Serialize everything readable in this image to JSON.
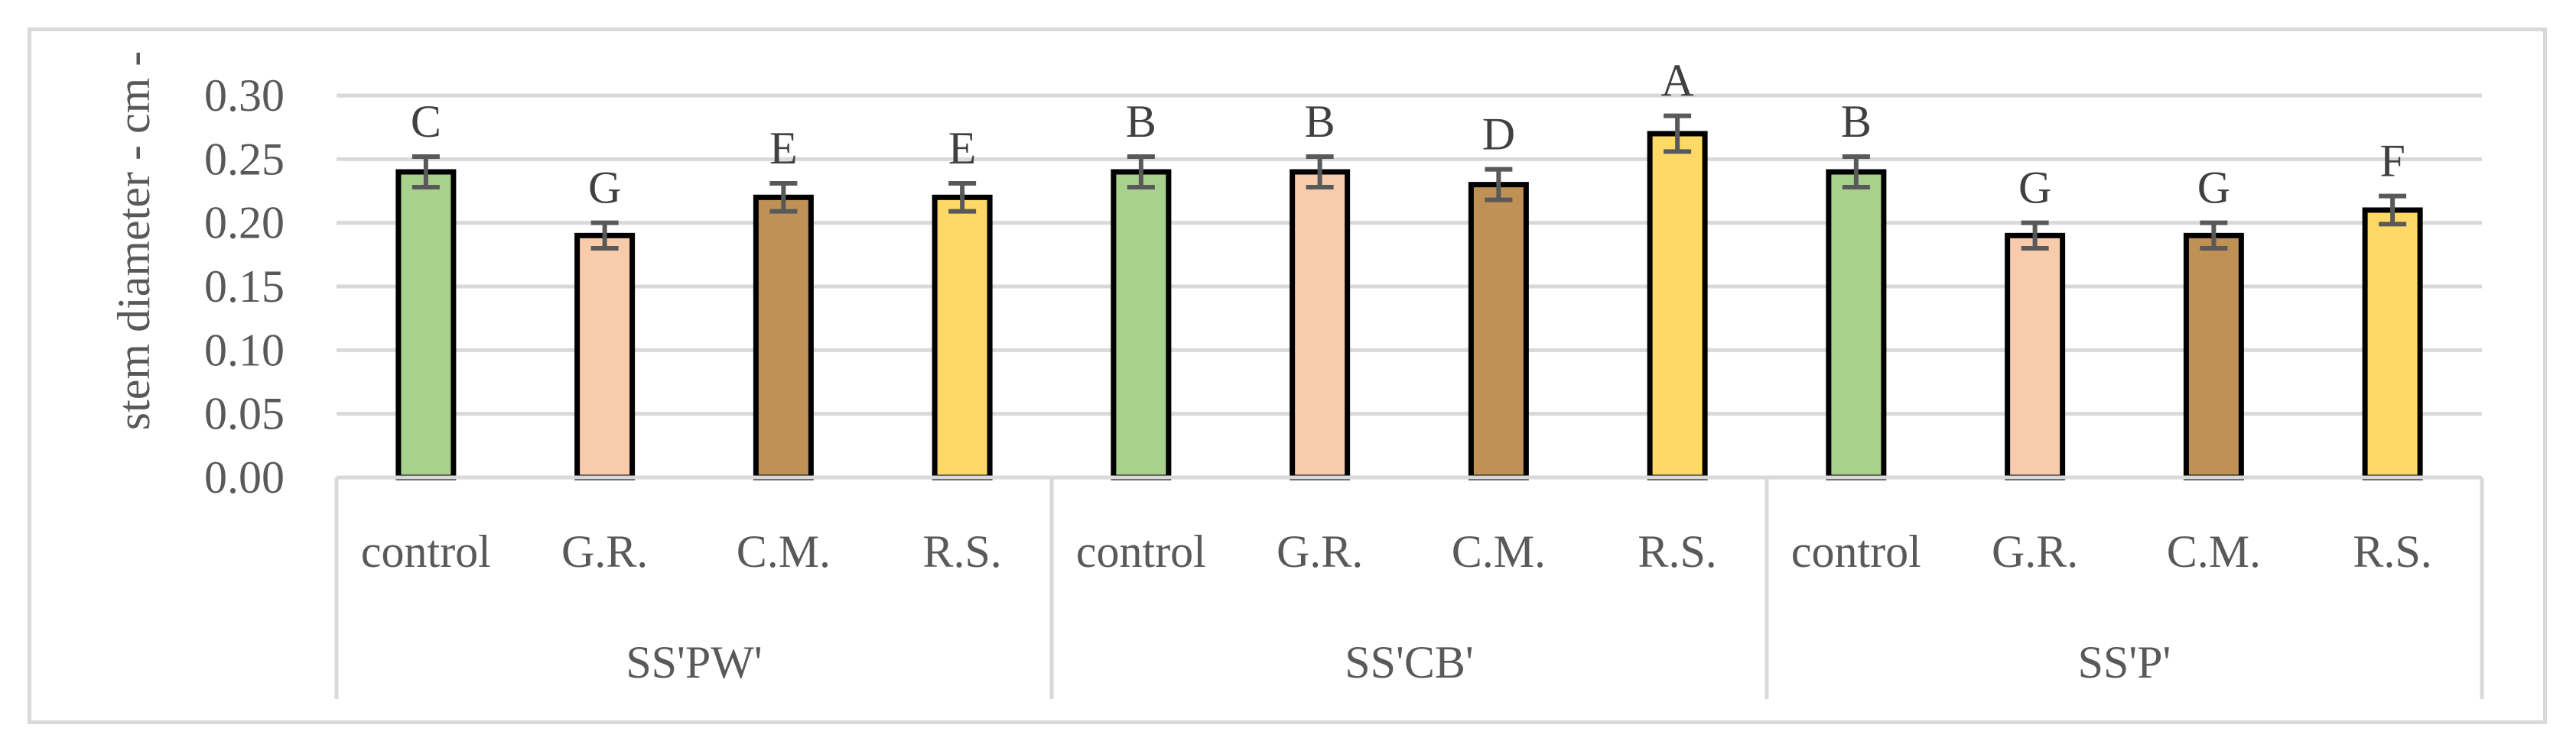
{
  "chart_data": {
    "type": "bar",
    "title": "",
    "xlabel": "",
    "ylabel": "stem diameter - cm -",
    "ylim": [
      0,
      0.3
    ],
    "yticks": [
      "0.00",
      "0.05",
      "0.10",
      "0.15",
      "0.20",
      "0.25",
      "0.30"
    ],
    "grid": true,
    "groups": [
      {
        "name": "SS'PW'",
        "bars": [
          {
            "category": "control",
            "value": 0.24,
            "error": 0.012,
            "letter": "C",
            "color": "#a9d18e"
          },
          {
            "category": "G.R.",
            "value": 0.19,
            "error": 0.01,
            "letter": "G",
            "color": "#f8cbad"
          },
          {
            "category": "C.M.",
            "value": 0.22,
            "error": 0.011,
            "letter": "E",
            "color": "#bf9154"
          },
          {
            "category": "R.S.",
            "value": 0.22,
            "error": 0.011,
            "letter": "E",
            "color": "#ffd966"
          }
        ]
      },
      {
        "name": "SS'CB'",
        "bars": [
          {
            "category": "control",
            "value": 0.24,
            "error": 0.012,
            "letter": "B",
            "color": "#a9d18e"
          },
          {
            "category": "G.R.",
            "value": 0.24,
            "error": 0.012,
            "letter": "B",
            "color": "#f8cbad"
          },
          {
            "category": "C.M.",
            "value": 0.23,
            "error": 0.012,
            "letter": "D",
            "color": "#bf9154"
          },
          {
            "category": "R.S.",
            "value": 0.27,
            "error": 0.014,
            "letter": "A",
            "color": "#ffd966"
          }
        ]
      },
      {
        "name": "SS'P'",
        "bars": [
          {
            "category": "control",
            "value": 0.24,
            "error": 0.012,
            "letter": "B",
            "color": "#a9d18e"
          },
          {
            "category": "G.R.",
            "value": 0.19,
            "error": 0.01,
            "letter": "G",
            "color": "#f8cbad"
          },
          {
            "category": "C.M.",
            "value": 0.19,
            "error": 0.01,
            "letter": "G",
            "color": "#bf9154"
          },
          {
            "category": "R.S.",
            "value": 0.21,
            "error": 0.011,
            "letter": "F",
            "color": "#ffd966"
          }
        ]
      }
    ],
    "colors": {
      "grid": "#d9d9d9",
      "bar_outline": "#000000",
      "error_bar": "#595959",
      "axis_line": "#d9d9d9"
    }
  }
}
